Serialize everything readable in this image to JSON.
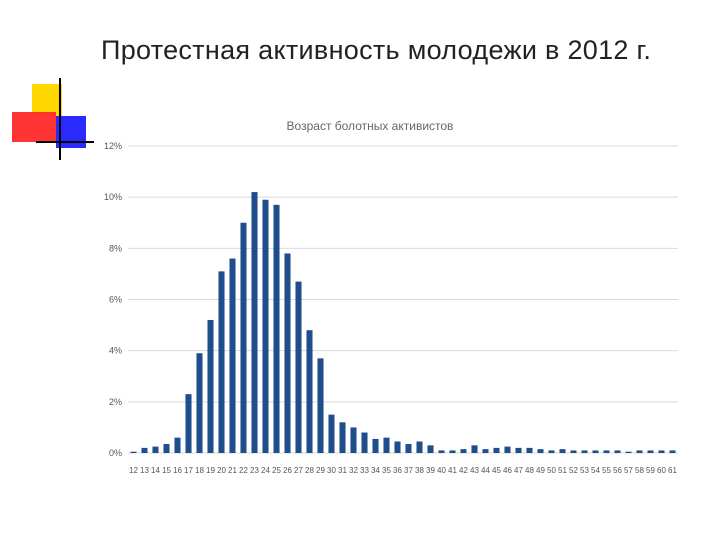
{
  "slide": {
    "title": "Протестная активность молодежи в 2012 г."
  },
  "colors": {
    "bar": "#1f4e8c",
    "grid": "#d9d9d9",
    "deco_yellow": "#ffd700",
    "deco_red": "#ff2a2a",
    "deco_blue": "#2a2aff"
  },
  "chart_data": {
    "type": "bar",
    "title": "Возраст болотных активистов",
    "xlabel": "",
    "ylabel": "",
    "ylim": [
      0,
      12
    ],
    "yticks": [
      "0%",
      "2%",
      "4%",
      "6%",
      "8%",
      "10%",
      "12%"
    ],
    "grid": true,
    "categories": [
      "12",
      "13",
      "14",
      "15",
      "16",
      "17",
      "18",
      "19",
      "20",
      "21",
      "22",
      "23",
      "24",
      "25",
      "26",
      "27",
      "28",
      "29",
      "30",
      "31",
      "32",
      "33",
      "34",
      "35",
      "36",
      "37",
      "38",
      "39",
      "40",
      "41",
      "42",
      "43",
      "44",
      "45",
      "46",
      "47",
      "48",
      "49",
      "50",
      "51",
      "52",
      "53",
      "54",
      "55",
      "56",
      "57",
      "58",
      "59",
      "60",
      "61"
    ],
    "values": [
      0.05,
      0.2,
      0.25,
      0.35,
      0.6,
      2.3,
      3.9,
      5.2,
      7.1,
      7.6,
      9.0,
      10.2,
      9.9,
      9.7,
      7.8,
      6.7,
      4.8,
      3.7,
      1.5,
      1.2,
      1.0,
      0.8,
      0.55,
      0.6,
      0.45,
      0.35,
      0.45,
      0.3,
      0.1,
      0.1,
      0.15,
      0.3,
      0.15,
      0.2,
      0.25,
      0.2,
      0.2,
      0.15,
      0.1,
      0.15,
      0.1,
      0.1,
      0.1,
      0.1,
      0.1,
      0.05,
      0.1,
      0.1,
      0.1,
      0.1
    ]
  }
}
